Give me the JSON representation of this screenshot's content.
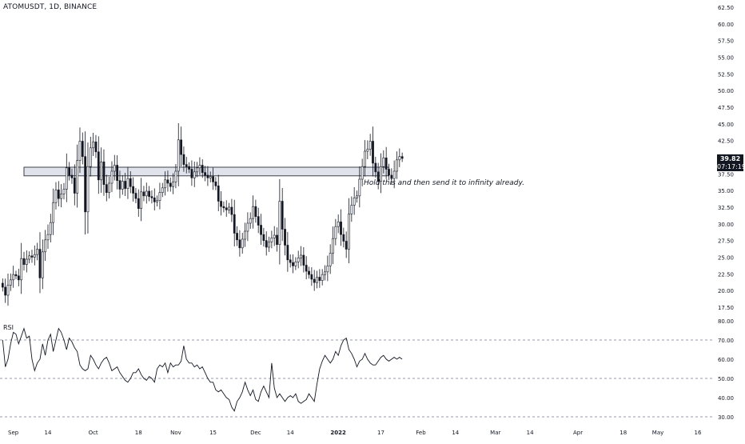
{
  "header": {
    "symbol": "ATOMUSDT, 1D, BINANCE"
  },
  "rsi_panel": {
    "label": "RSI"
  },
  "last_price": {
    "value": "39.82",
    "countdown": "07:17:19"
  },
  "annotation": {
    "text": "Hold this and then send it to infinity already."
  },
  "colors": {
    "up": "#ffffff",
    "down": "#131722",
    "candle_outline": "#131722",
    "zone_fill": "#e0e3eb",
    "zone_border": "#131722",
    "grid_dash": "#787b86",
    "axis_text": "#131722"
  },
  "chart_data": [
    {
      "type": "candlestick",
      "title": "ATOMUSDT, 1D, BINANCE",
      "ylim": [
        17.5,
        62.5
      ],
      "y_ticks": [
        "62.50",
        "60.00",
        "57.50",
        "55.00",
        "52.50",
        "50.00",
        "47.50",
        "45.00",
        "42.50",
        "40.00",
        "37.50",
        "35.00",
        "32.50",
        "30.00",
        "27.50",
        "25.00",
        "22.50",
        "20.00",
        "17.50"
      ],
      "x_tick_labels": [
        "Sep",
        "14",
        "Oct",
        "18",
        "Nov",
        "15",
        "Dec",
        "14",
        "2022",
        "17",
        "Feb",
        "14",
        "Mar",
        "14",
        "Apr",
        "18",
        "May",
        "16"
      ],
      "x_range": [
        "2021-08-27",
        "2022-05-22"
      ],
      "last_close": 39.82,
      "zone": {
        "from_date": "2021-09-05",
        "to_date": "2022-01-20",
        "low": 37.2,
        "high": 38.5
      },
      "closes": [
        20.5,
        19.3,
        20.8,
        21.6,
        22.4,
        22.2,
        21.6,
        24.8,
        23.9,
        24.7,
        25.2,
        25.0,
        25.4,
        26.2,
        21.9,
        25.8,
        27.6,
        28.4,
        30.2,
        33.2,
        35.1,
        33.8,
        34.5,
        35.2,
        38.4,
        37.3,
        36.9,
        34.6,
        39.5,
        42.4,
        40.1,
        31.8,
        38.6,
        41.4,
        42.3,
        40.8,
        36.6,
        39.3,
        35.9,
        34.7,
        36.1,
        37.9,
        38.8,
        36.5,
        35.2,
        36.4,
        35.3,
        36.8,
        35.6,
        34.6,
        33.8,
        32.3,
        34.8,
        34.2,
        34.9,
        34.1,
        33.9,
        33.3,
        33.5,
        34.7,
        35.4,
        36.6,
        36.1,
        35.6,
        36.3,
        37.9,
        42.6,
        40.4,
        38.9,
        38.6,
        38.2,
        36.9,
        37.8,
        38.4,
        38.8,
        37.7,
        37.3,
        36.9,
        37.1,
        36.3,
        35.7,
        33.4,
        32.6,
        32.4,
        32.1,
        32.5,
        31.4,
        28.6,
        27.6,
        26.4,
        27.7,
        28.9,
        30.1,
        30.8,
        32.6,
        31.1,
        29.8,
        28.4,
        27.5,
        26.5,
        27.3,
        27.9,
        28.3,
        26.9,
        33.4,
        29.2,
        26.8,
        24.6,
        24.2,
        23.7,
        24.3,
        24.9,
        25.3,
        23.8,
        22.9,
        22.4,
        21.7,
        21.2,
        22.0,
        21.5,
        22.4,
        22.8,
        23.7,
        25.6,
        27.8,
        29.6,
        30.3,
        28.4,
        27.4,
        26.2,
        31.5,
        32.8,
        33.9,
        34.2,
        36.7,
        38.6,
        40.9,
        41.2,
        42.4,
        39.1,
        37.8,
        36.4,
        38.6,
        39.9,
        38.2,
        37.3,
        36.8,
        37.9,
        39.6,
        40.1,
        39.82
      ]
    },
    {
      "type": "line",
      "title": "RSI",
      "ylim": [
        30,
        80
      ],
      "y_ticks": [
        "80.00",
        "70.00",
        "60.00",
        "50.00",
        "40.00",
        "30.00"
      ],
      "bands": [
        70,
        50,
        30
      ],
      "values": [
        70,
        56,
        60,
        68,
        74,
        73,
        68,
        72,
        76,
        71,
        72,
        60,
        54,
        58,
        60,
        68,
        62,
        70,
        73,
        64,
        70,
        76,
        74,
        70,
        65,
        71,
        69,
        66,
        64,
        57,
        55,
        54,
        55,
        62,
        60,
        57,
        55,
        58,
        60,
        61,
        58,
        54,
        55,
        56,
        53,
        51,
        49,
        48,
        50,
        53,
        53,
        55,
        52,
        50,
        49,
        51,
        50,
        48,
        55,
        57,
        56,
        58,
        53,
        58,
        56,
        57,
        57,
        59,
        67,
        60,
        58,
        58,
        56,
        57,
        55,
        56,
        53,
        50,
        48,
        48,
        44,
        43,
        44,
        42,
        40,
        39,
        35,
        33,
        38,
        40,
        43,
        48,
        44,
        41,
        44,
        39,
        38,
        43,
        46,
        43,
        40,
        58,
        45,
        40,
        42,
        40,
        38,
        40,
        41,
        40,
        42,
        38,
        37,
        38,
        39,
        42,
        40,
        38,
        47,
        55,
        59,
        62,
        60,
        58,
        60,
        64,
        62,
        67,
        70,
        71,
        65,
        63,
        60,
        56,
        59,
        60,
        63,
        60,
        58,
        57,
        57,
        59,
        61,
        62,
        60,
        59,
        60,
        61,
        60,
        61,
        60
      ]
    }
  ]
}
